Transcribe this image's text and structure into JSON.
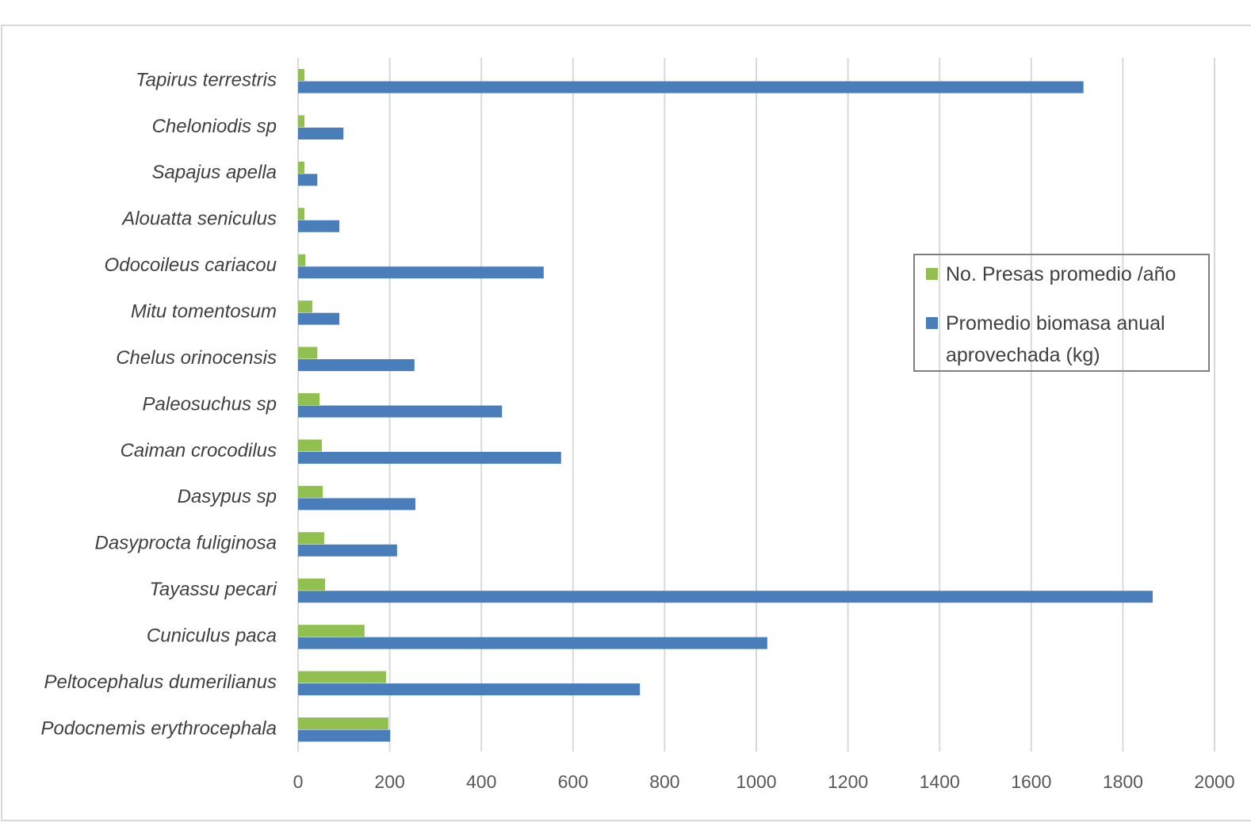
{
  "chart_data": {
    "type": "hbar",
    "categories": [
      "Tapirus terrestris",
      "Cheloniodis sp",
      "Sapajus apella",
      "Alouatta seniculus",
      "Odocoileus cariacou",
      "Mitu tomentosum",
      "Chelus orinocensis",
      "Paleosuchus sp",
      "Caiman crocodilus",
      "Dasypus sp",
      "Dasyprocta fuliginosa",
      "Tayassu pecari",
      "Cuniculus paca",
      "Peltocephalus dumerilianus",
      "Podocnemis erythrocephala"
    ],
    "series": [
      {
        "name": "No. Presas promedio /año",
        "color": "#92c050",
        "values": [
          14,
          14,
          14,
          14,
          16,
          31,
          42,
          47,
          52,
          54,
          57,
          59,
          145,
          192,
          197
        ]
      },
      {
        "name": "Promedio biomasa anual aprovechada (kg)",
        "color": "#4a7ebb",
        "values": [
          1714,
          99,
          42,
          90,
          536,
          90,
          254,
          445,
          574,
          256,
          216,
          1865,
          1024,
          746,
          201
        ]
      }
    ],
    "xlim": [
      0,
      2000
    ],
    "xticks": [
      0,
      200,
      400,
      600,
      800,
      1000,
      1200,
      1400,
      1600,
      1800,
      2000
    ],
    "grid": true
  }
}
